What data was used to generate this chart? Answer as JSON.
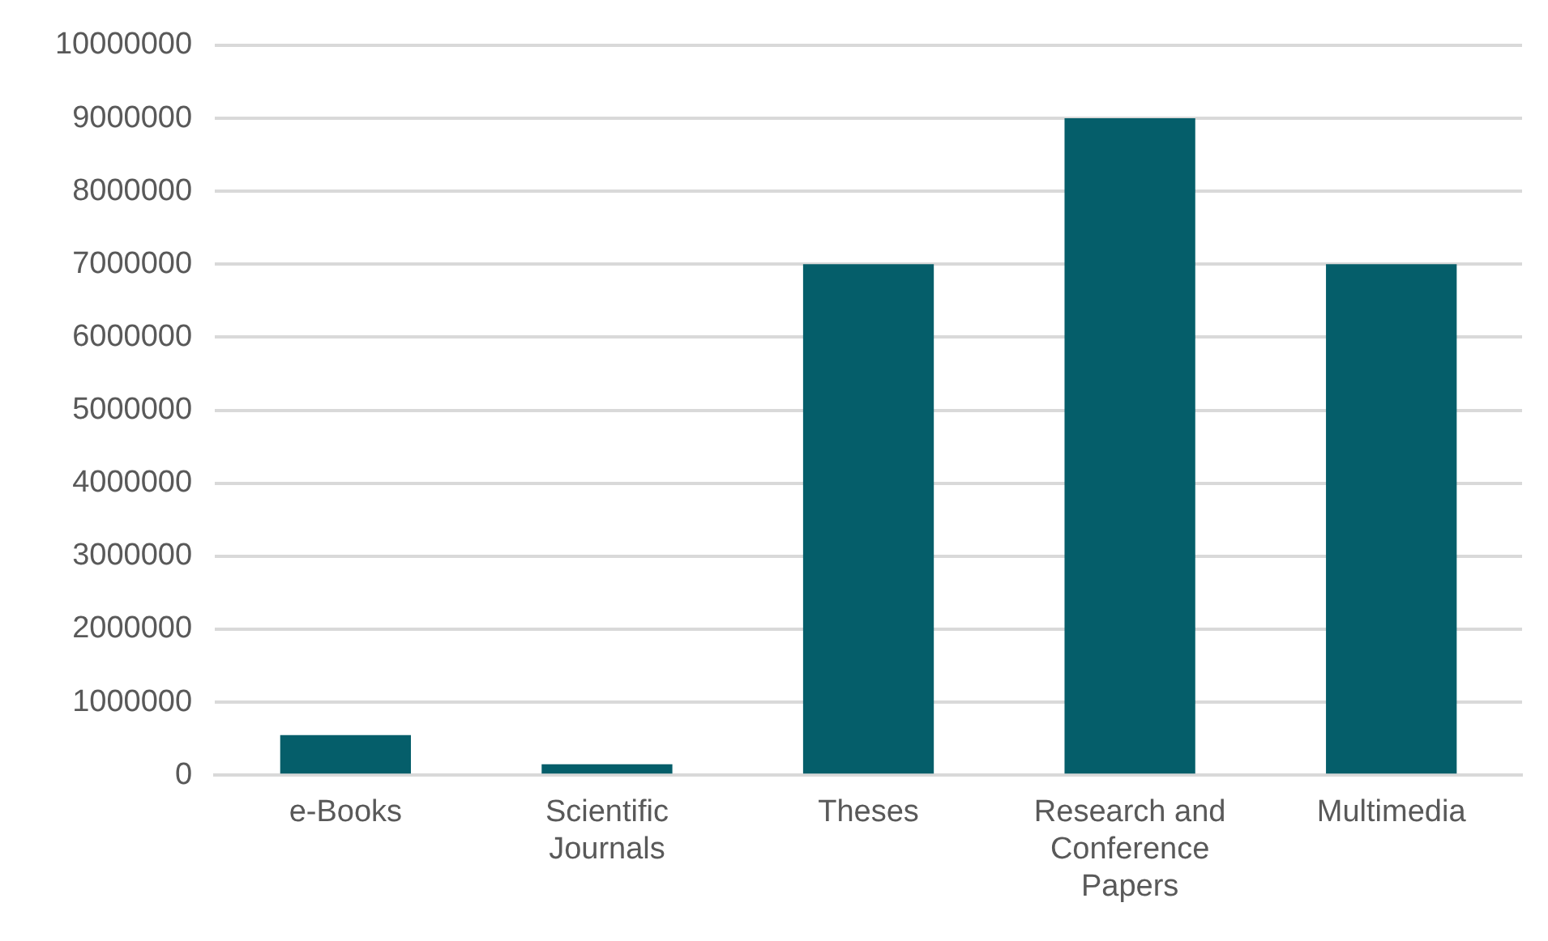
{
  "chart_data": {
    "type": "bar",
    "categories": [
      "e-Books",
      "Scientific Journals",
      "Theses",
      "Research and Conference Papers",
      "Multimedia"
    ],
    "values": [
      550000,
      150000,
      7000000,
      9000000,
      7000000
    ],
    "color": "#055e6a",
    "ylim": [
      0,
      10000000
    ],
    "yticks": [
      0,
      1000000,
      2000000,
      3000000,
      4000000,
      5000000,
      6000000,
      7000000,
      8000000,
      9000000,
      10000000
    ],
    "grid": "y"
  }
}
